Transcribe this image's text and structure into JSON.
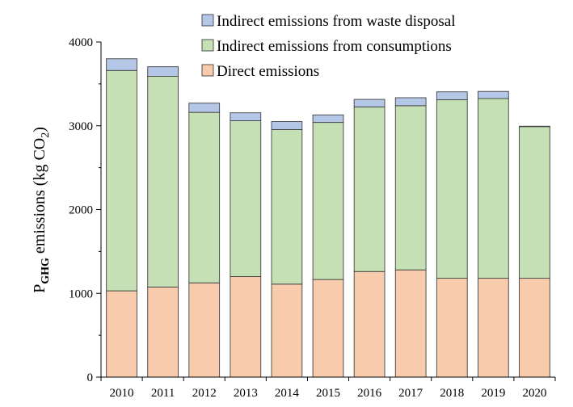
{
  "chart_data": {
    "type": "bar",
    "stacked": true,
    "categories": [
      "2010",
      "2011",
      "2012",
      "2013",
      "2014",
      "2015",
      "2016",
      "2017",
      "2018",
      "2019",
      "2020"
    ],
    "series": [
      {
        "name": "Direct emissions",
        "color": "#f8cbad",
        "values": [
          1030,
          1075,
          1125,
          1200,
          1110,
          1165,
          1260,
          1280,
          1180,
          1180,
          1180
        ]
      },
      {
        "name": "Indirect emissions from consumptions",
        "color": "#c5e0b4",
        "values": [
          2630,
          2515,
          2035,
          1860,
          1845,
          1875,
          1965,
          1960,
          2130,
          2145,
          1810
        ]
      },
      {
        "name": "Indirect emissions from waste disposal",
        "color": "#b4c7e7",
        "values": [
          140,
          115,
          110,
          95,
          95,
          90,
          90,
          95,
          95,
          85,
          5
        ]
      }
    ],
    "ylabel": {
      "main": "P",
      "subscript": "GHG",
      "mid": " emissions (kg CO",
      "sub2": "2",
      "end": ")"
    },
    "ylim": [
      0,
      4000
    ],
    "yticks": [
      0,
      1000,
      2000,
      3000,
      4000
    ],
    "ytick_labels": [
      "0",
      "1000",
      "2000",
      "3000",
      "4000"
    ],
    "grid": false,
    "legend_position": "top-right",
    "legend_order": [
      "Indirect emissions from waste disposal",
      "Indirect emissions from consumptions",
      "Direct emissions"
    ]
  }
}
